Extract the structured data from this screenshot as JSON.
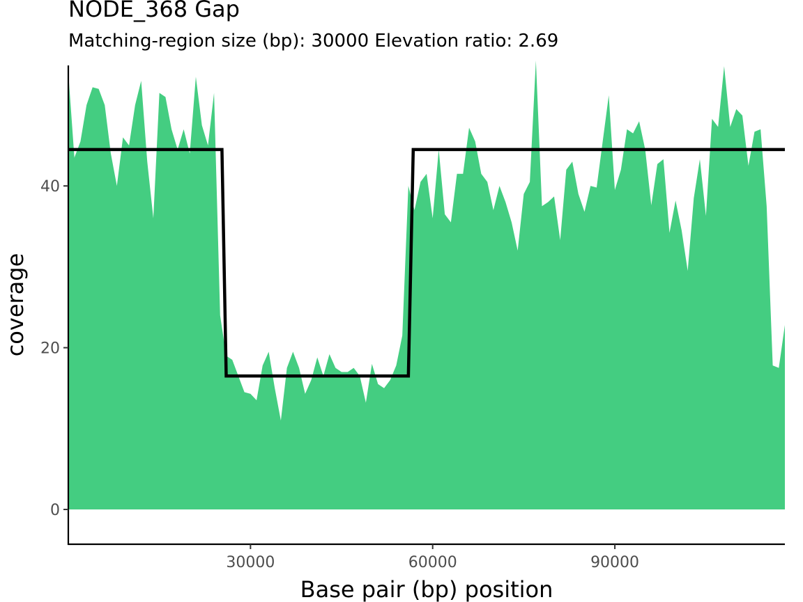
{
  "chart_data": {
    "type": "area",
    "title": "NODE_368 Gap",
    "subtitle": "Matching-region size (bp): 30000 Elevation ratio: 2.69",
    "xlabel": "Base pair (bp) position",
    "ylabel": "coverage",
    "xlim": [
      0,
      118000
    ],
    "ylim": [
      -4.3,
      54.9
    ],
    "x_ticks": [
      30000,
      60000,
      90000
    ],
    "y_ticks": [
      0,
      20,
      40
    ],
    "grid": false,
    "colors": {
      "area": "#44CD81",
      "line": "#000000",
      "axis": "#000000"
    },
    "series": [
      {
        "type": "area",
        "x": [
          0,
          1000,
          2000,
          3000,
          4000,
          5000,
          6000,
          7000,
          8000,
          9000,
          10000,
          11000,
          12000,
          13000,
          14000,
          15000,
          16000,
          17000,
          18000,
          19000,
          20000,
          21000,
          22000,
          23000,
          24000,
          25000,
          26000,
          27000,
          28000,
          29000,
          30000,
          31000,
          32000,
          33000,
          34000,
          35000,
          36000,
          37000,
          38000,
          39000,
          40000,
          41000,
          42000,
          43000,
          44000,
          45000,
          46000,
          47000,
          48000,
          49000,
          50000,
          51000,
          52000,
          53000,
          54000,
          55000,
          56000,
          57000,
          58000,
          59000,
          60000,
          61000,
          62000,
          63000,
          64000,
          65000,
          66000,
          67000,
          68000,
          69000,
          70000,
          71000,
          72000,
          73000,
          74000,
          75000,
          76000,
          77000,
          78000,
          79000,
          80000,
          81000,
          82000,
          83000,
          84000,
          85000,
          86000,
          87000,
          88000,
          89000,
          90000,
          91000,
          92000,
          93000,
          94000,
          95000,
          96000,
          97000,
          98000,
          99000,
          100000,
          101000,
          102000,
          103000,
          104000,
          105000,
          106000,
          107000,
          108000,
          109000,
          110000,
          111000,
          112000,
          113000,
          114000,
          115000,
          116000,
          117000,
          118000
        ],
        "values": [
          54,
          43.5,
          45.5,
          50,
          52.2,
          52,
          50,
          44,
          40,
          46,
          45,
          50,
          53,
          43,
          36,
          51.5,
          51,
          47,
          44.5,
          47,
          44,
          53.5,
          47.5,
          45,
          51.5,
          24,
          19,
          18.5,
          16.5,
          14.5,
          14.3,
          13.5,
          17.8,
          19.5,
          15,
          11,
          17.5,
          19.5,
          17.5,
          14.3,
          16,
          18.8,
          16.5,
          19.2,
          17.5,
          17,
          17,
          17.5,
          16.5,
          13.2,
          18,
          15.5,
          15,
          16,
          17.8,
          21.5,
          40,
          37,
          40.5,
          41.5,
          36,
          44.5,
          36.5,
          35.5,
          41.5,
          41.5,
          47.2,
          45.5,
          41.5,
          40.5,
          37,
          40,
          38,
          35.5,
          32,
          39,
          40.5,
          55.5,
          37.5,
          38,
          38.7,
          33.3,
          42,
          43,
          39,
          36.8,
          40,
          39.8,
          45.5,
          51.2,
          39.5,
          42,
          47,
          46.5,
          48,
          44.5,
          37.6,
          42.7,
          43.3,
          34.2,
          38.2,
          34.5,
          29.5,
          38.5,
          43.3,
          36.3,
          48.3,
          47.3,
          54.8,
          47.3,
          49.5,
          48.7,
          42.5,
          46.7,
          47,
          37.5,
          17.8,
          17.5,
          22.8
        ]
      },
      {
        "type": "step",
        "x": [
          0,
          25300,
          26000,
          56000,
          56800,
          118000
        ],
        "values": [
          44.5,
          44.5,
          16.5,
          16.5,
          44.5,
          44.5
        ]
      }
    ]
  }
}
